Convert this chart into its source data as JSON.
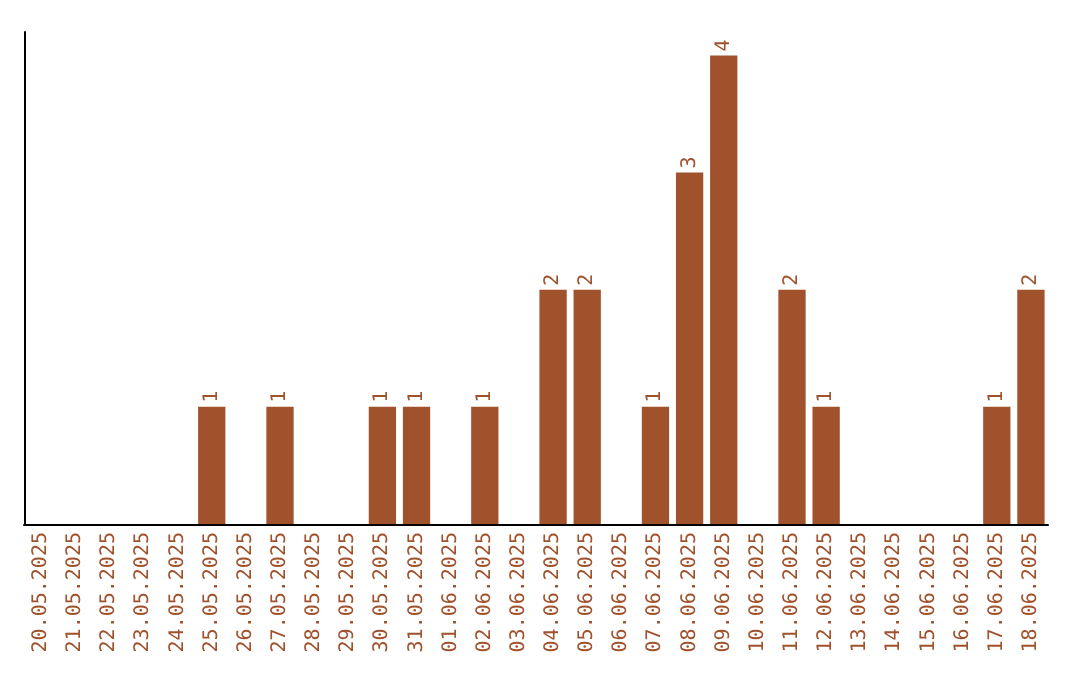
{
  "chart_data": {
    "type": "bar",
    "categories": [
      "20.05.2025",
      "21.05.2025",
      "22.05.2025",
      "23.05.2025",
      "24.05.2025",
      "25.05.2025",
      "26.05.2025",
      "27.05.2025",
      "28.05.2025",
      "29.05.2025",
      "30.05.2025",
      "31.05.2025",
      "01.06.2025",
      "02.06.2025",
      "03.06.2025",
      "04.06.2025",
      "05.06.2025",
      "06.06.2025",
      "07.06.2025",
      "08.06.2025",
      "09.06.2025",
      "10.06.2025",
      "11.06.2025",
      "12.06.2025",
      "13.06.2025",
      "14.06.2025",
      "15.06.2025",
      "16.06.2025",
      "17.06.2025",
      "18.06.2025"
    ],
    "values": [
      0,
      0,
      0,
      0,
      0,
      1,
      0,
      1,
      0,
      0,
      1,
      1,
      0,
      1,
      0,
      2,
      2,
      0,
      1,
      3,
      4,
      0,
      2,
      1,
      0,
      0,
      0,
      0,
      1,
      2
    ],
    "value_labels": [
      null,
      null,
      null,
      null,
      null,
      "1",
      null,
      "1",
      null,
      null,
      "1",
      "1",
      null,
      "1",
      null,
      "2",
      "2",
      null,
      "1",
      "3",
      "4",
      null,
      "2",
      "1",
      null,
      null,
      null,
      null,
      "1",
      "2"
    ],
    "color": "#a0522d",
    "tick_labels": "x"
  }
}
